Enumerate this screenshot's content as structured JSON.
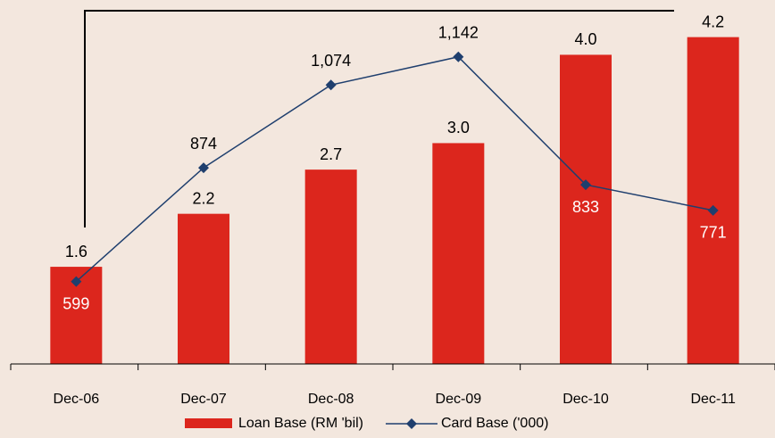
{
  "chart_data": {
    "type": "bar_line",
    "categories": [
      "Dec-06",
      "Dec-07",
      "Dec-08",
      "Dec-09",
      "Dec-10",
      "Dec-11"
    ],
    "series": [
      {
        "name": "Loan Base (RM 'bil)",
        "type": "bar",
        "color": "#dc261d",
        "values": [
          1.6,
          2.2,
          2.7,
          3.0,
          4.0,
          4.2
        ],
        "value_labels": [
          "1.6",
          "2.2",
          "2.7",
          "3.0",
          "4.0",
          "4.2"
        ]
      },
      {
        "name": "Card Base ('000)",
        "type": "line",
        "axis": "y2",
        "color": "#1f3f6e",
        "values": [
          599,
          874,
          1074,
          1142,
          833,
          771
        ],
        "value_labels": [
          "599",
          "874",
          "1,074",
          "1,142",
          "833",
          "771"
        ]
      }
    ],
    "ylim": [
      0.5,
      4.6
    ],
    "y2lim": [
      400,
      1275
    ],
    "legend": "bottom"
  }
}
